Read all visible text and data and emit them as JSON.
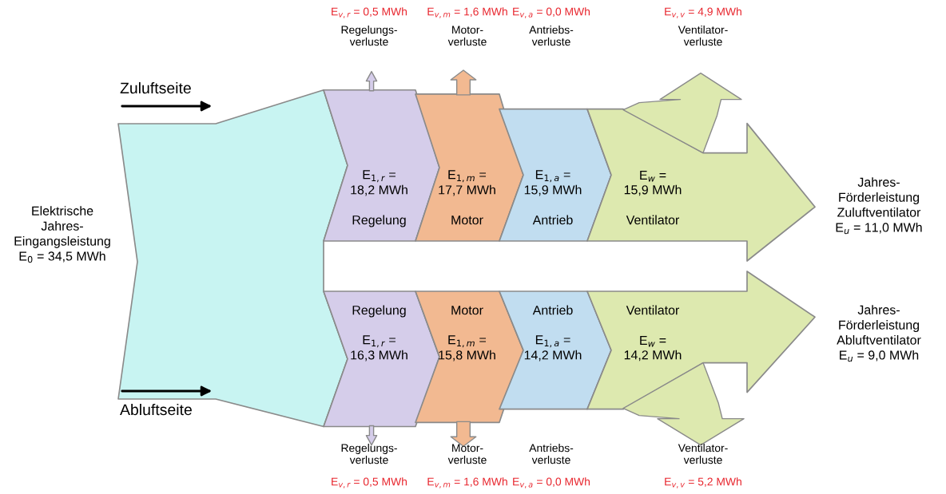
{
  "chart_data": {
    "type": "other",
    "categories": [
      "Regelung",
      "Motor",
      "Antrieb",
      "Ventilator"
    ],
    "colors": [
      "#c8f4f2"
    ],
    "series": [
      {
        "colors": [
          "#d5cdea",
          "#f2b991",
          "#c1ddf0",
          "#dde9af"
        ],
        "values": [
          18.2,
          17.7,
          15.9,
          15.9
        ],
        "value_labels": [
          "E$_{1,r}$ =\n18,2 MWh",
          "E$_{1,m}$ =\n17,7 MWh",
          "E$_{1,a}$ =\n15,9 MWh",
          "E$_{w}$ =\n15,9 MWh"
        ]
      },
      {
        "colors": [
          "#d5cdea",
          "#f2b991",
          "#c1ddf0",
          "#dde9af"
        ],
        "values": [
          0.5,
          1.6,
          0.0,
          4.9
        ],
        "value_labels": [
          "E$_{v,r}$ = 0,5 MWh",
          "E$_{v,m}$ = 1,6 MWh",
          "E$_{v,a}$ = 0,0 MWh",
          "E$_{v,v}$ = 4,9 MWh"
        ]
      },
      {
        "colors": [
          "#d5cdea",
          "#f2b991",
          "#c1ddf0",
          "#dde9af"
        ],
        "values": [
          16.3,
          15.8,
          14.2,
          14.2
        ],
        "value_labels": [
          "E$_{1,r}$ =\n16,3 MWh",
          "E$_{1,m}$ =\n15,8 MWh",
          "E$_{1,a}$ =\n14,2 MWh",
          "E$_{w}$ =\n14,2 MWh"
        ]
      },
      {
        "colors": [
          "#d5cdea",
          "#f2b991",
          "#c1ddf0",
          "#dde9af"
        ],
        "values": [
          0.5,
          1.6,
          0.0,
          5.2
        ],
        "value_labels": [
          "E$_{v,r}$ = 0,5 MWh",
          "E$_{v,m}$ = 1,6 MWh",
          "E$_{v,a}$ = 0,0 MWh",
          "E$_{v,v}$ = 5,2 MWh"
        ]
      }
    ],
    "annotations": [
      "Elektrische\nJahres-\nEingangsleistung\nE$_{0}$ = 34,5 MWh",
      "Jahres-\nFörderleistung\nZuluftventilator\nE$_{u}$ = 11,0 MWh",
      "Jahres-\nFörderleistung\nAbluftventilator\nE$_{u}$ = 9,0 MWh",
      "Regelungs-\nverluste",
      "Motor-\nverluste",
      "Antriebs-\nverluste",
      "Ventilator-\nverluste",
      "Regelungs-\nverluste",
      "Motor-\nverluste",
      "Antriebs-\nverluste",
      "Ventilator-\nverluste",
      "Zuluftseite",
      "Abluftseite"
    ]
  }
}
